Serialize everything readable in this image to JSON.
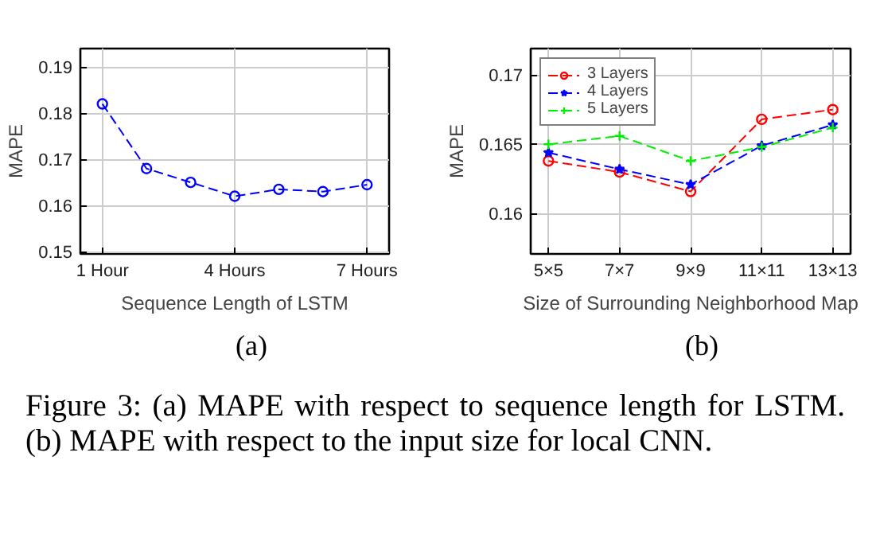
{
  "chart_data": [
    {
      "type": "line",
      "xlabel": "Sequence Length of LSTM",
      "ylabel": "MAPE",
      "x": [
        1,
        2,
        3,
        4,
        5,
        6,
        7
      ],
      "series": [
        {
          "color": "#0000ff",
          "values": [
            0.182,
            0.168,
            0.165,
            0.162,
            0.1635,
            0.163,
            0.1645
          ],
          "marker": "circle"
        }
      ],
      "xlim": [
        0.5,
        7.5
      ],
      "xticks": [
        {
          "value": 1,
          "label": "1 Hour"
        },
        {
          "value": 4,
          "label": "4 Hours"
        },
        {
          "value": 7,
          "label": "7 Hours"
        }
      ],
      "ylim": [
        0.1495,
        0.194
      ],
      "yticks": [
        0.15,
        0.16,
        0.17,
        0.18,
        0.19
      ],
      "grid": true,
      "line_style": "dashed",
      "legend": false,
      "annotations": [
        "(a)"
      ]
    },
    {
      "type": "line",
      "xlabel": "Size of Surrounding Neighborhood Map",
      "ylabel": "MAPE",
      "categories": [
        "5×5",
        "7×7",
        "9×9",
        "11×11",
        "13×13"
      ],
      "series": [
        {
          "name": "3 Layers",
          "color": "#ff0000",
          "values": [
            0.1638,
            0.163,
            0.1616,
            0.1668,
            0.1675
          ],
          "marker": "circle"
        },
        {
          "name": "4 Layers",
          "color": "#0000ff",
          "values": [
            0.1644,
            0.1632,
            0.1621,
            0.1649,
            0.1664
          ],
          "marker": "star"
        },
        {
          "name": "5 Layers",
          "color": "#00ee00",
          "values": [
            0.165,
            0.1656,
            0.1638,
            0.1648,
            0.1662
          ],
          "marker": "cross"
        }
      ],
      "ylim": [
        0.1571,
        0.1719
      ],
      "yticks": [
        0.16,
        0.165,
        0.17
      ],
      "grid": true,
      "line_style": "dashed",
      "legend": "top left",
      "annotations": [
        "(b)",
        "Figure 3: (a) MAPE with respect to sequence length for LSTM. (b) MAPE with respect to the input size for local CNN."
      ]
    }
  ]
}
